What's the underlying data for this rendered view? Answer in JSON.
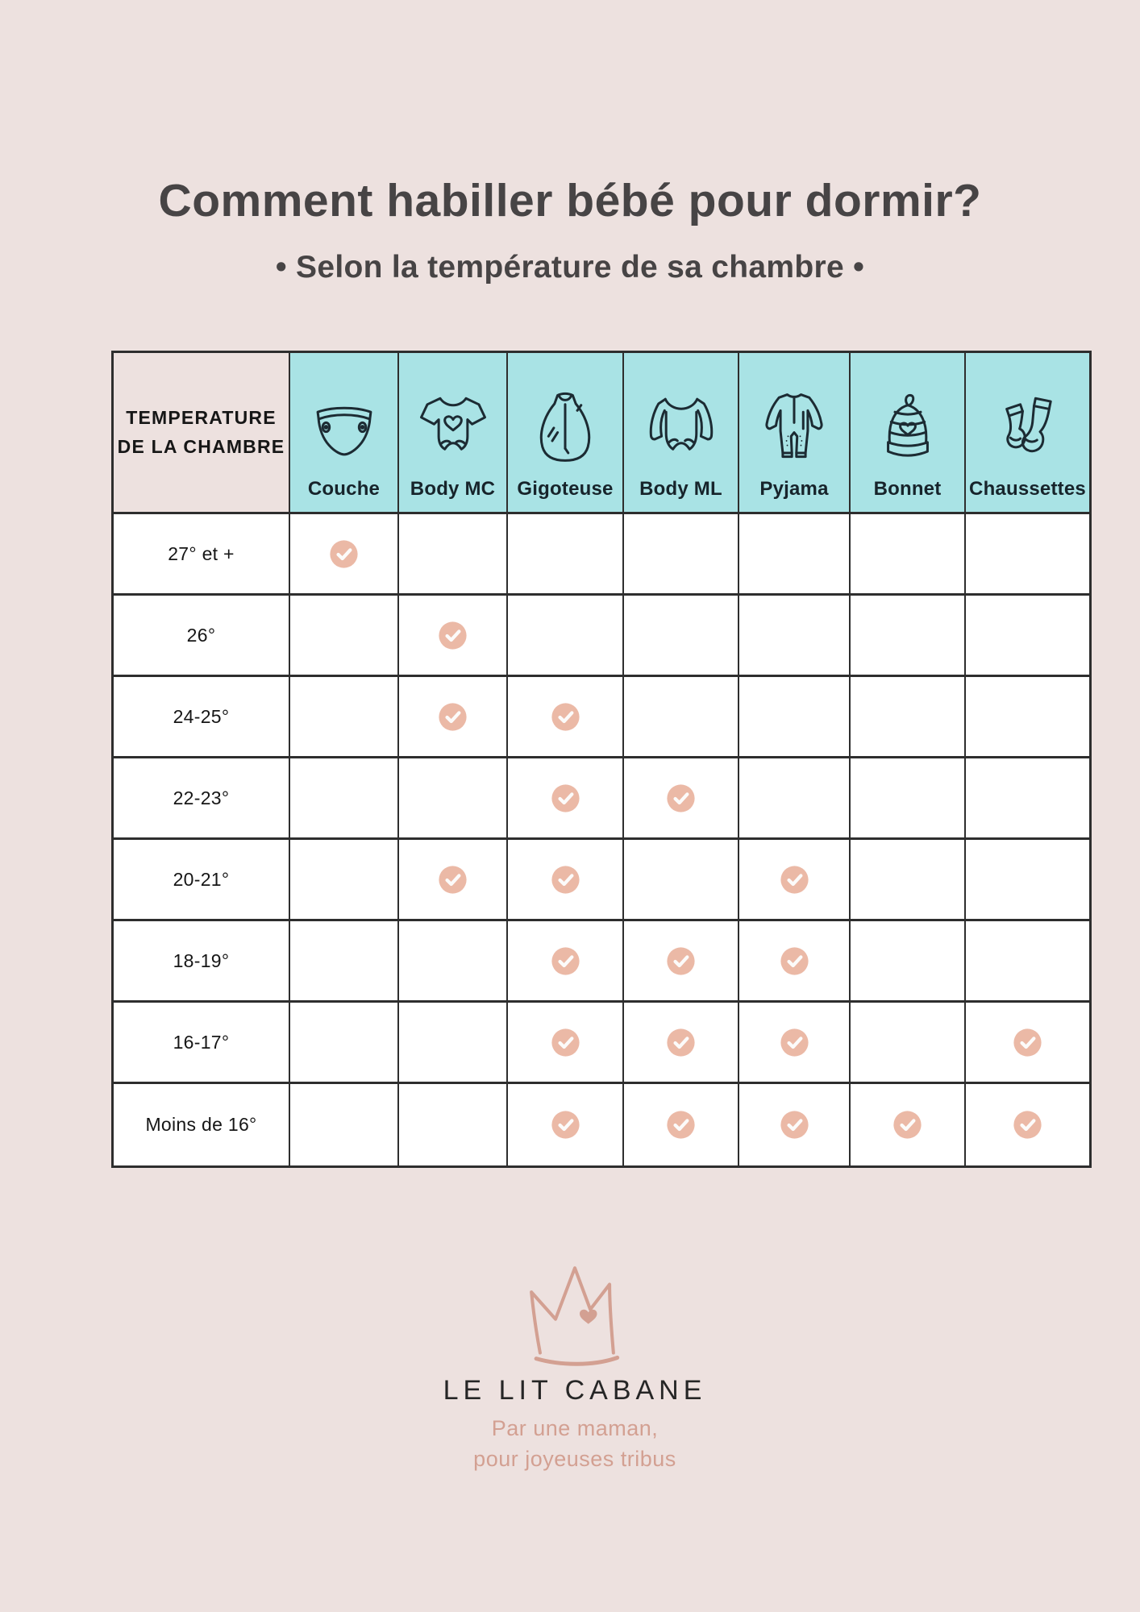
{
  "header": {
    "title": "Comment habiller bébé pour dormir?",
    "subtitle": "• Selon la température de sa chambre •"
  },
  "chart_data": {
    "type": "table",
    "title": "Comment habiller bébé pour dormir?",
    "subtitle": "• Selon la température de sa chambre •",
    "corner_header": "TEMPERATURE DE LA CHAMBRE",
    "columns": [
      "Couche",
      "Body MC",
      "Gigoteuse",
      "Body ML",
      "Pyjama",
      "Bonnet",
      "Chaussettes"
    ],
    "column_icons": [
      "diaper-icon",
      "bodysuit-short-sleeve-icon",
      "sleep-sack-icon",
      "bodysuit-long-sleeve-icon",
      "pyjama-icon",
      "baby-hat-icon",
      "socks-icon"
    ],
    "rows": [
      "27° et +",
      "26°",
      "24-25°",
      "22-23°",
      "20-21°",
      "18-19°",
      "16-17°",
      "Moins de 16°"
    ],
    "checks": [
      [
        1,
        0,
        0,
        0,
        0,
        0,
        0
      ],
      [
        0,
        1,
        0,
        0,
        0,
        0,
        0
      ],
      [
        0,
        1,
        1,
        0,
        0,
        0,
        0
      ],
      [
        0,
        0,
        1,
        1,
        0,
        0,
        0
      ],
      [
        0,
        1,
        1,
        0,
        1,
        0,
        0
      ],
      [
        0,
        0,
        1,
        1,
        1,
        0,
        0
      ],
      [
        0,
        0,
        1,
        1,
        1,
        0,
        1
      ],
      [
        0,
        0,
        1,
        1,
        1,
        1,
        1
      ]
    ],
    "check_icon": "check-icon",
    "legend_position": "none",
    "grid": true
  },
  "colors": {
    "background": "#EDE1DF",
    "header_cells": "#A9E3E5",
    "check": "#EBB9A6",
    "accent": "#D3A092",
    "title_text": "#474445"
  },
  "footer": {
    "logo": "crown-icon",
    "brand": "LE LIT CABANE",
    "tagline_line1": "Par une maman,",
    "tagline_line2": "pour joyeuses tribus"
  }
}
